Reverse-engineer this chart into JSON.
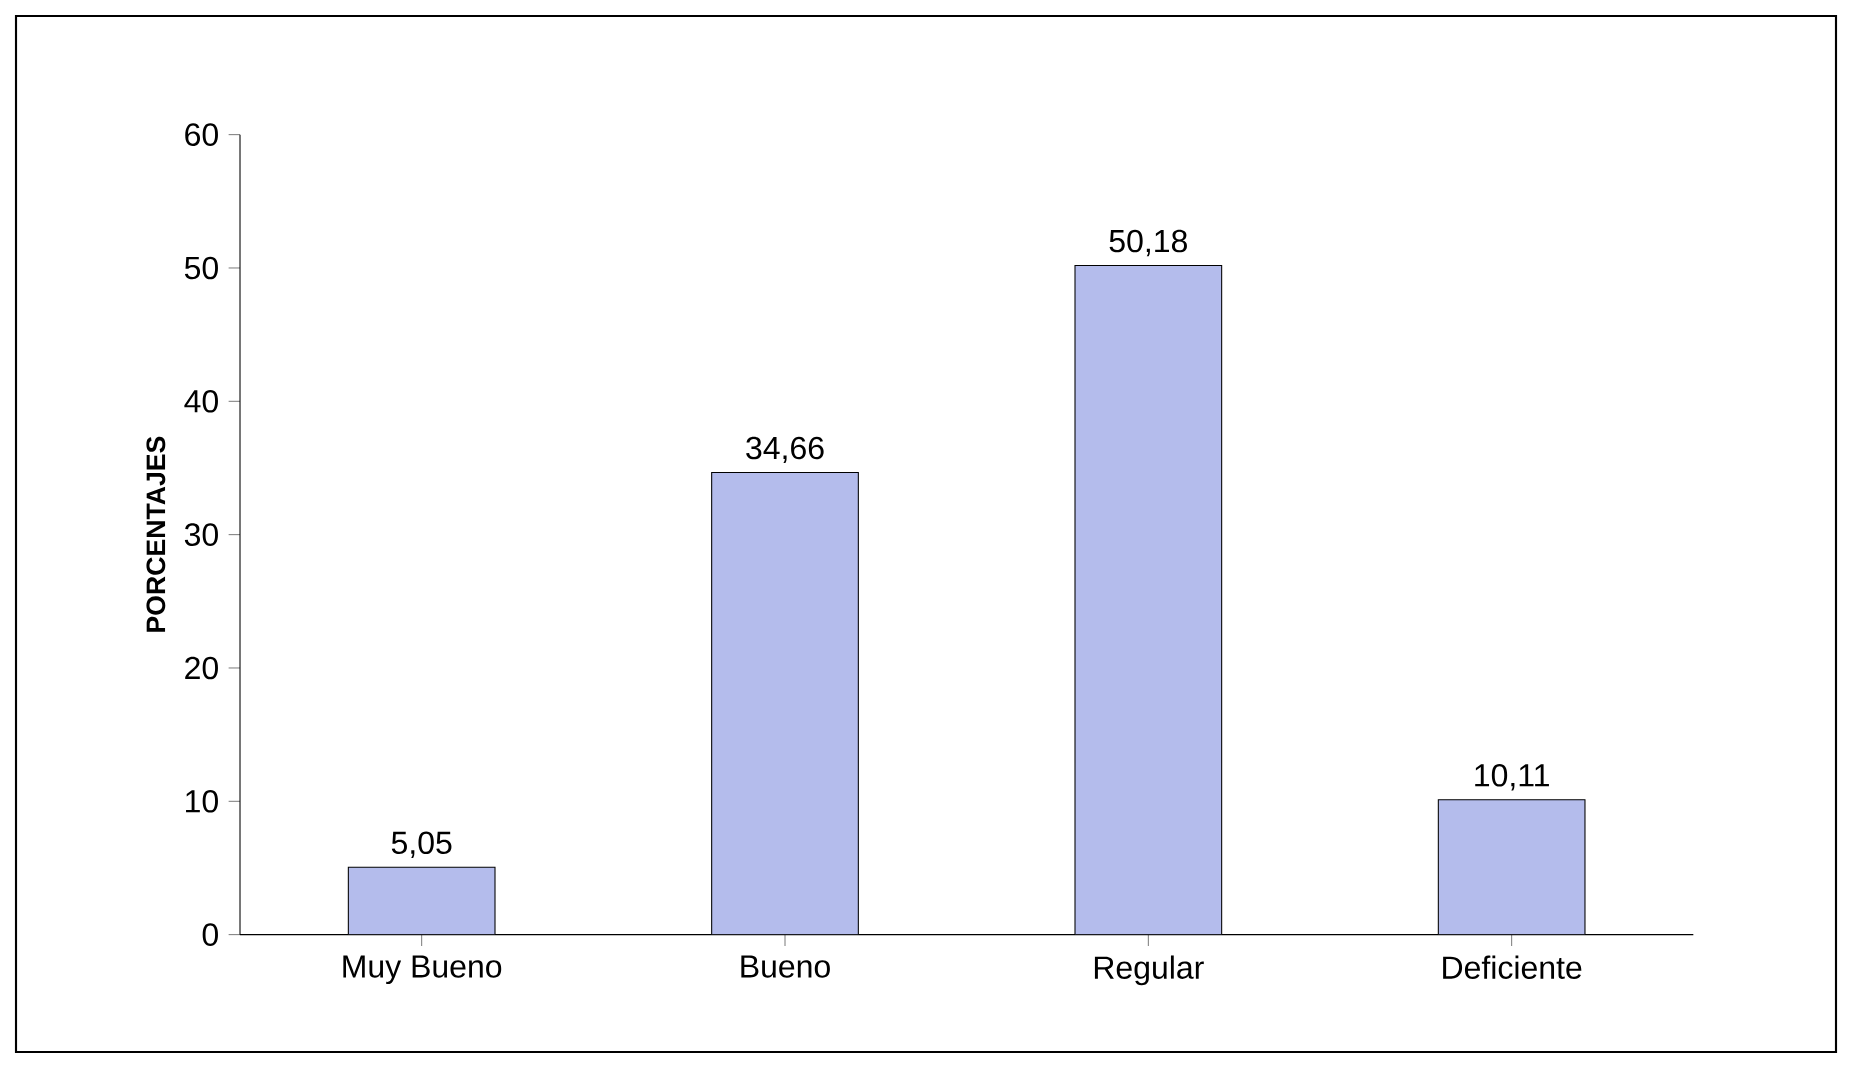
{
  "chart_data": {
    "type": "bar",
    "ylabel": "PORCENTAJES",
    "categories": [
      "Muy Bueno",
      "Bueno",
      "Regular",
      "Deficiente"
    ],
    "values": [
      5.05,
      34.66,
      50.18,
      10.11
    ],
    "value_labels": [
      "5,05",
      "34,66",
      "50,18",
      "10,11"
    ],
    "color": "#b4bcec",
    "ylim": [
      0,
      60
    ],
    "yticks": [
      0,
      10,
      20,
      30,
      40,
      50,
      60
    ]
  }
}
